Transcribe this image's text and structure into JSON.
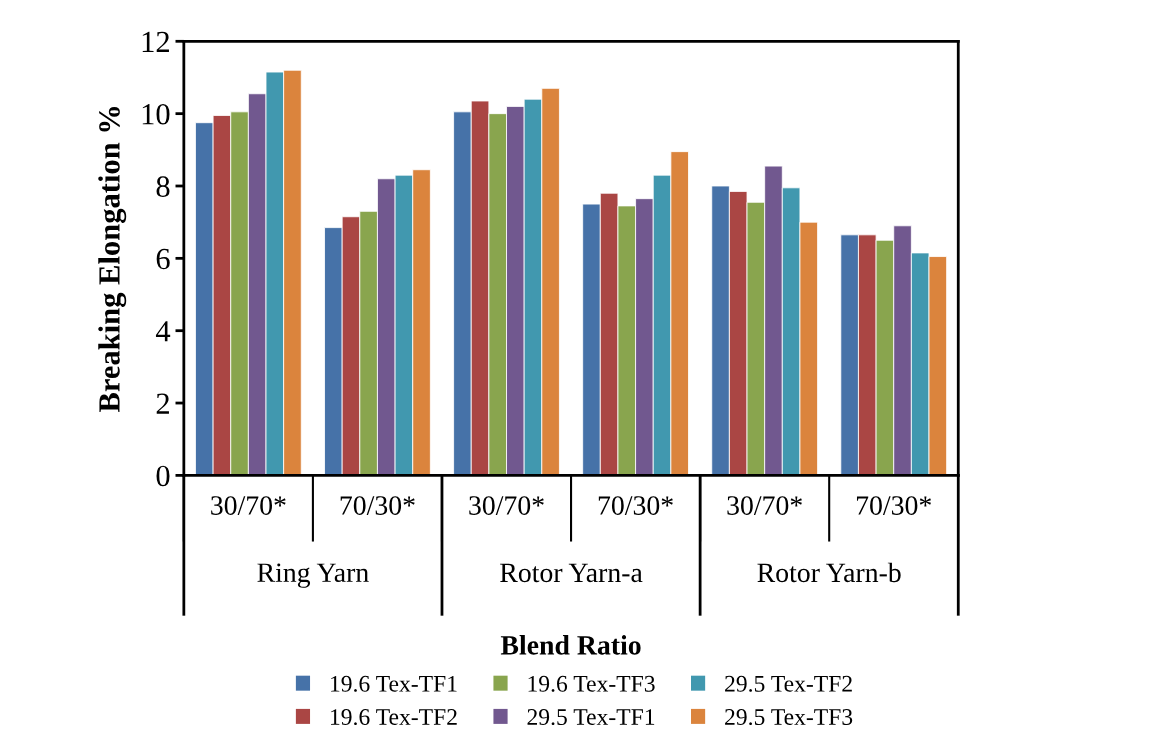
{
  "chart_data": {
    "type": "bar",
    "ylabel": "Breaking Elongation %",
    "xlabel": "Blend Ratio",
    "categories": [
      "30/70*",
      "70/30*",
      "30/70*",
      "70/30*",
      "30/70*",
      "70/30*"
    ],
    "annotations": [
      "Ring Yarn",
      "Rotor Yarn-a",
      "Rotor Yarn-b"
    ],
    "series": [
      {
        "name": "19.6 Tex-TF1",
        "color": "#4672a8",
        "values": [
          9.75,
          6.85,
          10.05,
          7.5,
          8.0,
          6.65
        ]
      },
      {
        "name": "19.6 Tex-TF2",
        "color": "#aa4644",
        "values": [
          9.95,
          7.15,
          10.35,
          7.8,
          7.85,
          6.65
        ]
      },
      {
        "name": "19.6 Tex-TF3",
        "color": "#89a54e",
        "values": [
          10.05,
          7.3,
          10.0,
          7.45,
          7.55,
          6.5
        ]
      },
      {
        "name": "29.5 Tex-TF1",
        "color": "#71588f",
        "values": [
          10.55,
          8.2,
          10.2,
          7.65,
          8.55,
          6.9
        ]
      },
      {
        "name": "29.5 Tex-TF2",
        "color": "#4198af",
        "values": [
          11.15,
          8.3,
          10.4,
          8.3,
          7.95,
          6.15
        ]
      },
      {
        "name": "29.5 Tex-TF3",
        "color": "#db843d",
        "values": [
          11.2,
          8.45,
          10.7,
          8.95,
          7.0,
          6.05
        ]
      }
    ],
    "ylim": [
      0,
      12
    ],
    "yticks": [
      0,
      2,
      4,
      6,
      8,
      10,
      12
    ],
    "grid": false,
    "legend": "bottom"
  }
}
